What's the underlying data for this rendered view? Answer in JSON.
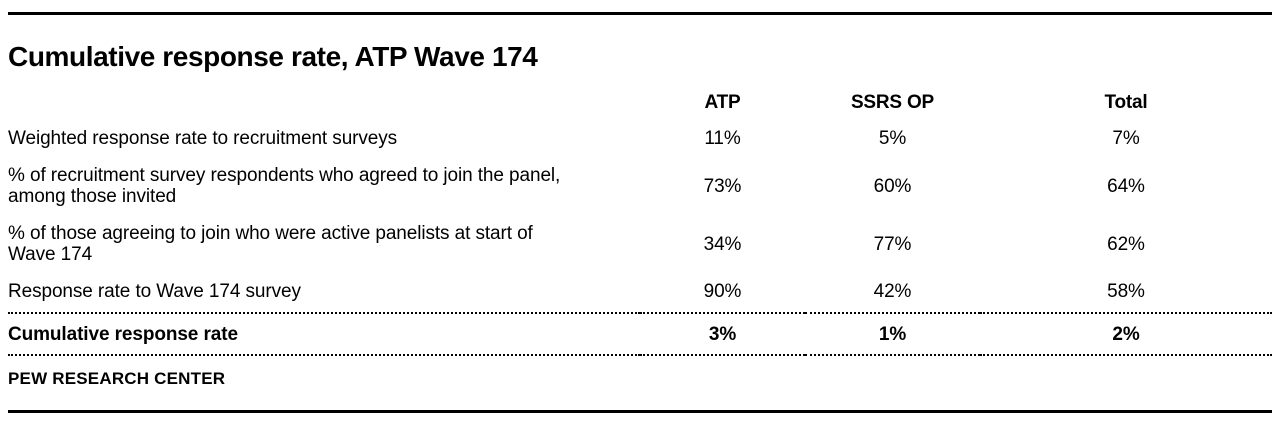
{
  "chart_data": {
    "type": "table",
    "title": "Cumulative response rate, ATP Wave 174",
    "columns": [
      "ATP",
      "SSRS OP",
      "Total"
    ],
    "rows": [
      {
        "label": "Weighted response rate to recruitment surveys",
        "values": [
          "11%",
          "5%",
          "7%"
        ],
        "bold": false
      },
      {
        "label": "% of recruitment survey respondents who agreed to join the panel, among those invited",
        "values": [
          "73%",
          "60%",
          "64%"
        ],
        "bold": false
      },
      {
        "label": "% of those agreeing to join who were active panelists at start of Wave 174",
        "values": [
          "34%",
          "77%",
          "62%"
        ],
        "bold": false
      },
      {
        "label": "Response rate to Wave 174 survey",
        "values": [
          "90%",
          "42%",
          "58%"
        ],
        "bold": false
      },
      {
        "label": "Cumulative response rate",
        "values": [
          "3%",
          "1%",
          "2%"
        ],
        "bold": true
      }
    ],
    "source": "PEW RESEARCH CENTER"
  },
  "colors": {
    "text": "#000000",
    "rule": "#000000",
    "background": "#ffffff"
  }
}
